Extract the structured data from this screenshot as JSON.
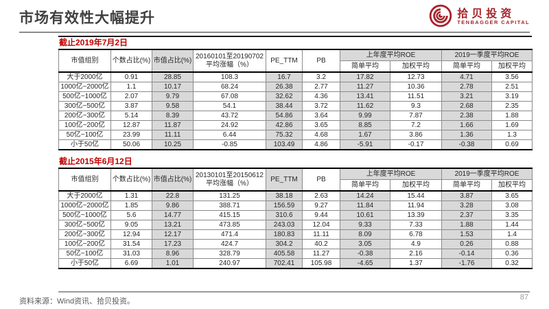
{
  "header": {
    "title": "市场有效性大幅提升",
    "logo": {
      "name_cn": "拾贝投资",
      "name_en": "TENBAGGER CAPITAL",
      "brand_color": "#a6262c"
    }
  },
  "colors": {
    "brand": "#a6262c",
    "caption_red": "#c00000",
    "cell_shade": "#d9d9d9",
    "title_gray": "#404040"
  },
  "tables": [
    {
      "caption": "截止2019年7月2日",
      "columns": [
        "市值组别",
        "个数占比(%)",
        "市值占比(%)",
        "20160101至20190702平均涨幅（%）",
        "PE_TTM",
        "PB"
      ],
      "roe_groups": [
        {
          "label": "上年度平均ROE",
          "sub": [
            "简单平均",
            "加权平均"
          ]
        },
        {
          "label": "2019一季度平均ROE",
          "sub": [
            "简单平均",
            "加权平均"
          ]
        }
      ],
      "rows": [
        [
          "大于2000亿",
          "0.91",
          "28.85",
          "108.3",
          "16.7",
          "3.2",
          "17.82",
          "12.73",
          "4.71",
          "3.56"
        ],
        [
          "1000亿~2000亿",
          "1.1",
          "10.17",
          "68.24",
          "26.38",
          "2.77",
          "11.27",
          "10.36",
          "2.78",
          "2.51"
        ],
        [
          "500亿~1000亿",
          "2.07",
          "9.79",
          "67.08",
          "32.62",
          "4.36",
          "13.41",
          "11.51",
          "3.21",
          "3.19"
        ],
        [
          "300亿~500亿",
          "3.87",
          "9.58",
          "54.1",
          "38.44",
          "3.72",
          "11.62",
          "9.3",
          "2.68",
          "2.35"
        ],
        [
          "200亿~300亿",
          "5.14",
          "8.39",
          "43.72",
          "54.86",
          "3.64",
          "9.99",
          "7.87",
          "2.38",
          "1.88"
        ],
        [
          "100亿~200亿",
          "12.87",
          "11.87",
          "24.92",
          "42.86",
          "3.65",
          "8.85",
          "7.2",
          "1.66",
          "1.69"
        ],
        [
          "50亿~100亿",
          "23.99",
          "11.11",
          "6.44",
          "75.32",
          "4.68",
          "1.67",
          "3.86",
          "1.36",
          "1.3"
        ],
        [
          "小于50亿",
          "50.06",
          "10.25",
          "-0.85",
          "103.49",
          "4.86",
          "-5.91",
          "-0.17",
          "-0.38",
          "0.69"
        ]
      ]
    },
    {
      "caption": "截止2015年6月12日",
      "columns": [
        "市值组别",
        "个数占比(%)",
        "市值占比(%)",
        "20130101至20150612平均涨幅（%）",
        "PE_TTM",
        "PB"
      ],
      "roe_groups": [
        {
          "label": "上年度平均ROE",
          "sub": [
            "简单平均",
            "加权平均"
          ]
        },
        {
          "label": "2019一季度平均ROE",
          "sub": [
            "简单平均",
            "加权平均"
          ]
        }
      ],
      "rows": [
        [
          "大于2000亿",
          "1.31",
          "22.8",
          "131.25",
          "38.18",
          "2.63",
          "14.24",
          "15.44",
          "3.87",
          "3.65"
        ],
        [
          "1000亿~2000亿",
          "1.85",
          "9.86",
          "388.71",
          "156.59",
          "9.27",
          "11.84",
          "11.94",
          "3.28",
          "3.08"
        ],
        [
          "500亿~1000亿",
          "5.6",
          "14.77",
          "415.15",
          "310.6",
          "9.44",
          "10.61",
          "13.39",
          "2.37",
          "3.35"
        ],
        [
          "300亿~500亿",
          "9.05",
          "13.21",
          "473.85",
          "243.03",
          "12.04",
          "9.33",
          "7.33",
          "1.88",
          "1.44"
        ],
        [
          "200亿~300亿",
          "12.94",
          "12.17",
          "471.4",
          "180.83",
          "11.11",
          "8.09",
          "6.78",
          "1.53",
          "1.4"
        ],
        [
          "100亿~200亿",
          "31.54",
          "17.23",
          "424.7",
          "304.2",
          "40.2",
          "3.05",
          "4.9",
          "0.26",
          "0.88"
        ],
        [
          "50亿~100亿",
          "31.03",
          "8.96",
          "328.79",
          "405.58",
          "11.27",
          "-0.38",
          "2.16",
          "-0.14",
          "0.36"
        ],
        [
          "小于50亿",
          "6.69",
          "1.01",
          "240.97",
          "702.41",
          "105.98",
          "-4.65",
          "1.37",
          "-1.76",
          "0.32"
        ]
      ]
    }
  ],
  "footer": {
    "source": "资料来源：Wind资讯、拾贝投资。",
    "page": "87"
  }
}
